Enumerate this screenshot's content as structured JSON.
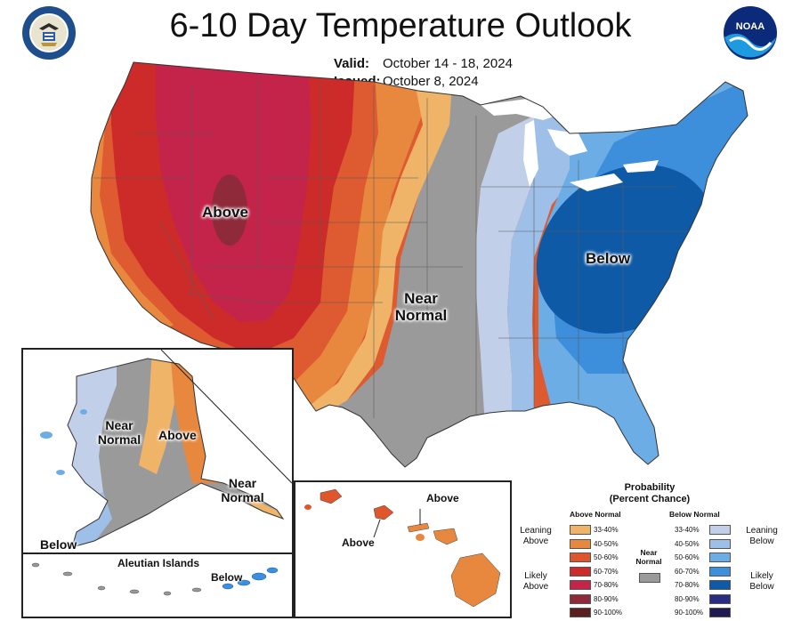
{
  "title": "6-10 Day Temperature Outlook",
  "valid_label": "Valid:",
  "valid_value": "October 14 - 18, 2024",
  "issued_label": "Issued:",
  "issued_value": "October 8, 2024",
  "logos": {
    "left": "department-of-commerce-seal",
    "right": "noaa-logo",
    "noaa_text": "NOAA"
  },
  "map_labels": {
    "above": "Above",
    "near_normal_line1": "Near",
    "near_normal_line2": "Normal",
    "below": "Below"
  },
  "alaska_labels": {
    "near_normal_line1": "Near",
    "near_normal_line2": "Normal",
    "above": "Above",
    "se_near_line1": "Near",
    "se_near_line2": "Normal",
    "below": "Below"
  },
  "aleutian": {
    "title": "Aleutian Islands",
    "below": "Below"
  },
  "hawaii_labels": {
    "above_top": "Above",
    "above_left": "Above"
  },
  "legend": {
    "title_line1": "Probability",
    "title_line2": "(Percent Chance)",
    "above_header": "Above Normal",
    "below_header": "Below Normal",
    "near_header_line1": "Near",
    "near_header_line2": "Normal",
    "leaning_above_line1": "Leaning",
    "leaning_above_line2": "Above",
    "likely_above_line1": "Likely",
    "likely_above_line2": "Above",
    "leaning_below_line1": "Leaning",
    "leaning_below_line2": "Below",
    "likely_below_line1": "Likely",
    "likely_below_line2": "Below",
    "above_bins": [
      {
        "label": "33-40%",
        "color": "#F0B469"
      },
      {
        "label": "40-50%",
        "color": "#E8883E"
      },
      {
        "label": "50-60%",
        "color": "#E0562C"
      },
      {
        "label": "60-70%",
        "color": "#CC2B2A"
      },
      {
        "label": "70-80%",
        "color": "#C4244A"
      },
      {
        "label": "80-90%",
        "color": "#8E2A3A"
      },
      {
        "label": "90-100%",
        "color": "#5A1F1E"
      }
    ],
    "below_bins": [
      {
        "label": "33-40%",
        "color": "#C2CFE9"
      },
      {
        "label": "40-50%",
        "color": "#9EC0E8"
      },
      {
        "label": "50-60%",
        "color": "#6CADE6"
      },
      {
        "label": "60-70%",
        "color": "#3D8FDB"
      },
      {
        "label": "70-80%",
        "color": "#0E5AA7"
      },
      {
        "label": "80-90%",
        "color": "#2A2C82"
      },
      {
        "label": "90-100%",
        "color": "#1F1A4F"
      }
    ],
    "near_color": "#9A9A9A"
  }
}
